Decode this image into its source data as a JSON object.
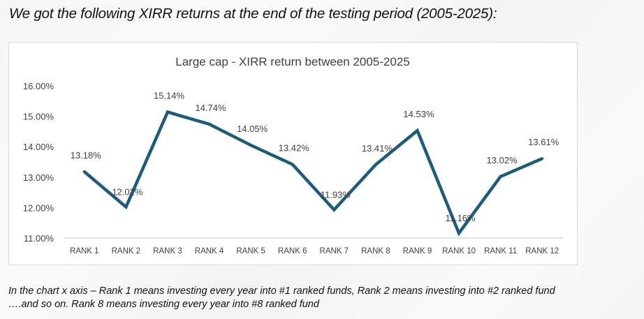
{
  "heading": "We got the following XIRR returns at the end of the testing period (2005-2025):",
  "footnote": {
    "line1": "In the chart x axis – Rank 1 means investing every year into #1 ranked funds, Rank 2 means investing into #2 ranked fund",
    "line2": "….and so on. Rank 8 means investing every year into #8 ranked fund"
  },
  "chart_data": {
    "type": "line",
    "title": "Large cap - XIRR return between 2005-2025",
    "xlabel": "",
    "ylabel": "",
    "categories": [
      "RANK 1",
      "RANK 2",
      "RANK 3",
      "RANK 4",
      "RANK 5",
      "RANK 6",
      "RANK 7",
      "RANK 8",
      "RANK 9",
      "RANK 10",
      "RANK 11",
      "RANK 12"
    ],
    "series": [
      {
        "name": "XIRR return",
        "values": [
          13.18,
          12.02,
          15.14,
          14.74,
          14.05,
          13.42,
          11.93,
          13.41,
          14.53,
          11.16,
          13.02,
          13.61
        ],
        "labels": [
          "13.18%",
          "12.02%",
          "15.14%",
          "14.74%",
          "14.05%",
          "13.42%",
          "11.93%",
          "13.41%",
          "14.53%",
          "11.16%",
          "13.02%",
          "13.61%"
        ],
        "color": "#1d5b7a"
      }
    ],
    "ylim": [
      11,
      16
    ],
    "yticks": [
      11,
      12,
      13,
      14,
      15,
      16
    ],
    "ytick_labels": [
      "11.00%",
      "12.00%",
      "13.00%",
      "14.00%",
      "15.00%",
      "16.00%"
    ],
    "grid": false,
    "legend": "none",
    "axis_color": "#d9d9d9"
  }
}
